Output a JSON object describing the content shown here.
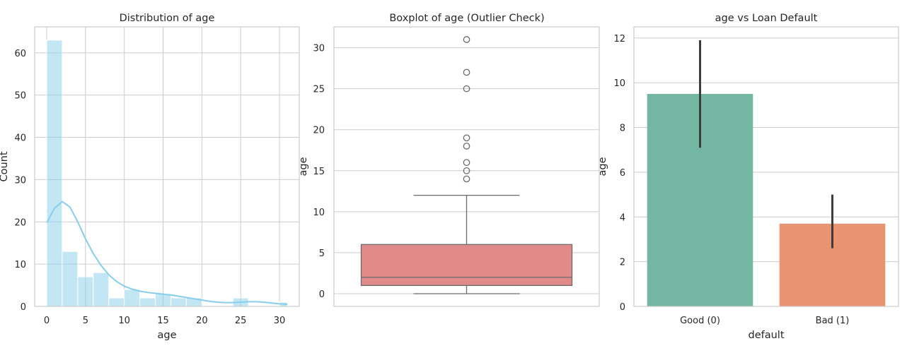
{
  "chart_data": [
    {
      "type": "bar",
      "title": "Distribution of age",
      "xlabel": "age",
      "ylabel": "Count",
      "xlim": [
        -1.55,
        32.55
      ],
      "ylim": [
        0,
        66.15
      ],
      "xticks": [
        "0",
        "5",
        "10",
        "15",
        "20",
        "25",
        "30"
      ],
      "yticks": [
        "0",
        "10",
        "20",
        "30",
        "40",
        "50",
        "60"
      ],
      "bin_edges": [
        0,
        2,
        4,
        6,
        8,
        10,
        12,
        14,
        16,
        18,
        20,
        22,
        24,
        26,
        28,
        30,
        31
      ],
      "counts": [
        63,
        13,
        7,
        8,
        2,
        4,
        2,
        3,
        2,
        2,
        0,
        0,
        2,
        0,
        0,
        1
      ],
      "bar_color": "#87ceeb",
      "kde": {
        "x": [
          0,
          1,
          2,
          3,
          4,
          5,
          6,
          7,
          8,
          9,
          10,
          11,
          12,
          13,
          14,
          15,
          16,
          17,
          18,
          19,
          20,
          21,
          22,
          23,
          24,
          25,
          26,
          27,
          28,
          29,
          30,
          31
        ],
        "y": [
          19.8,
          23.2,
          24.8,
          23.5,
          20.0,
          16.0,
          12.5,
          9.7,
          7.5,
          5.9,
          4.8,
          4.1,
          3.6,
          3.3,
          3.1,
          2.9,
          2.7,
          2.4,
          2.1,
          1.8,
          1.5,
          1.2,
          1.0,
          0.9,
          0.9,
          1.0,
          1.1,
          1.1,
          1.0,
          0.8,
          0.6,
          0.5
        ],
        "color": "#87ceeb"
      }
    },
    {
      "type": "box",
      "title": "Boxplot of age (Outlier Check)",
      "ylabel": "age",
      "ylim": [
        -1.55,
        32.55
      ],
      "yticks": [
        "0",
        "5",
        "10",
        "15",
        "20",
        "25",
        "30"
      ],
      "box": {
        "whislo": 0,
        "q1": 1,
        "median": 2,
        "q3": 6,
        "whishi": 12
      },
      "outliers": [
        14,
        15,
        16,
        18,
        19,
        25,
        27,
        31
      ],
      "box_color": "#e08a8a"
    },
    {
      "type": "bar",
      "title": "age vs Loan Default",
      "xlabel": "default",
      "ylabel": "age",
      "ylim": [
        0,
        12.5
      ],
      "yticks": [
        "0",
        "2",
        "4",
        "6",
        "8",
        "10",
        "12"
      ],
      "categories": [
        "Good (0)",
        "Bad (1)"
      ],
      "values": [
        9.5,
        3.7
      ],
      "ci": [
        [
          7.1,
          11.9
        ],
        [
          2.6,
          5.0
        ]
      ],
      "colors": [
        "#73b6a1",
        "#e89472"
      ]
    }
  ]
}
